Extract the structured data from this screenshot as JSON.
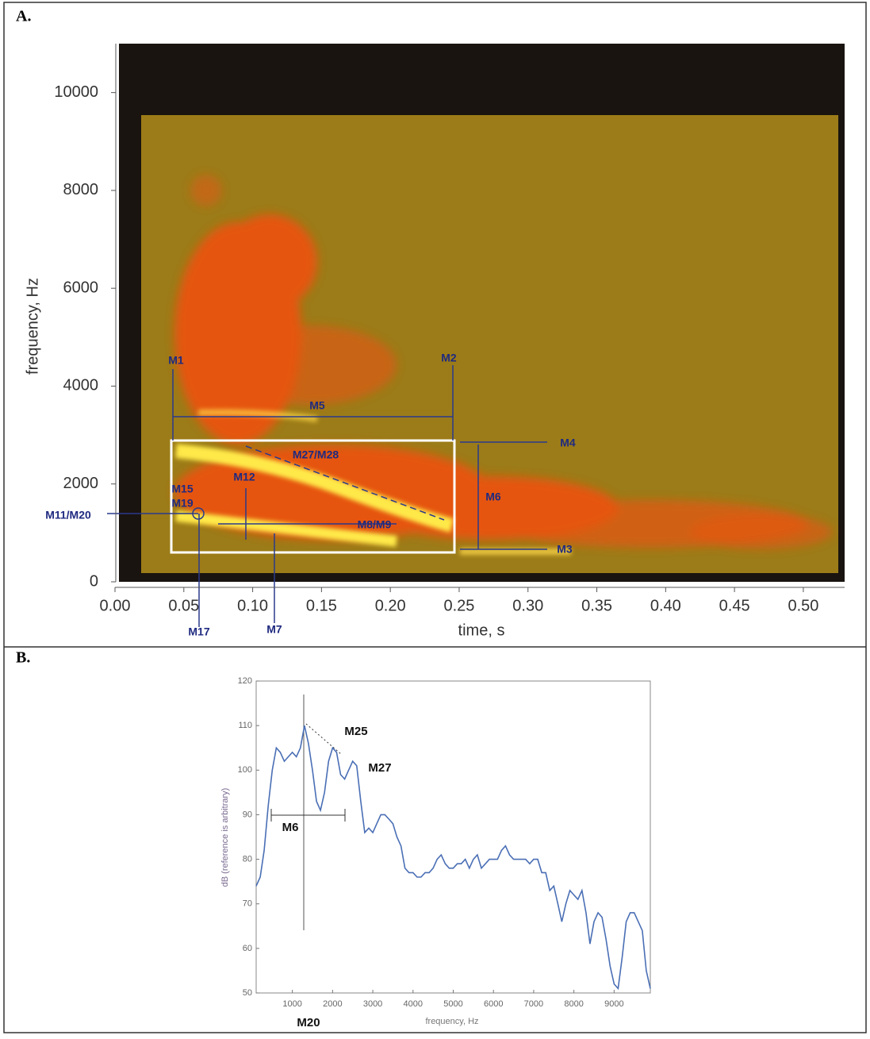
{
  "chart_data": [
    {
      "type": "spectrogram",
      "panel": "A.",
      "xlabel": "time, s",
      "ylabel": "frequency, Hz",
      "xlim": [
        0,
        0.53
      ],
      "ylim": [
        0,
        11000
      ],
      "xticks": [
        {
          "value": 0,
          "label": "0.00"
        },
        {
          "value": 0.05,
          "label": "0.05"
        },
        {
          "value": 0.1,
          "label": "0.10"
        },
        {
          "value": 0.15,
          "label": "0.15"
        },
        {
          "value": 0.2,
          "label": "0.20"
        },
        {
          "value": 0.25,
          "label": "0.25"
        },
        {
          "value": 0.3,
          "label": "0.30"
        },
        {
          "value": 0.35,
          "label": "0.35"
        },
        {
          "value": 0.4,
          "label": "0.40"
        },
        {
          "value": 0.45,
          "label": "0.45"
        },
        {
          "value": 0.5,
          "label": "0.50"
        }
      ],
      "yticks": [
        0,
        2000,
        4000,
        6000,
        8000,
        10000
      ],
      "annotations": [
        "M1",
        "M2",
        "M5",
        "M4",
        "M27/M28",
        "M12",
        "M15",
        "M19",
        "M11/M20",
        "M6",
        "M8/M9",
        "M3",
        "M17",
        "M7"
      ]
    },
    {
      "type": "line",
      "panel": "B.",
      "xlabel": "frequency, Hz",
      "ylabel": "dB (reference is arbitrary)",
      "xlim": [
        100,
        9900
      ],
      "ylim": [
        50,
        120
      ],
      "xticks": [
        1000,
        2000,
        3000,
        4000,
        5000,
        6000,
        7000,
        8000,
        9000
      ],
      "yticks": [
        50,
        60,
        70,
        80,
        90,
        100,
        110,
        120
      ],
      "color": "#4a6fb5",
      "x": [
        100,
        200,
        300,
        400,
        500,
        600,
        700,
        800,
        900,
        1000,
        1100,
        1200,
        1300,
        1400,
        1500,
        1600,
        1700,
        1800,
        1900,
        2000,
        2100,
        2200,
        2300,
        2400,
        2500,
        2600,
        2700,
        2800,
        2900,
        3000,
        3100,
        3200,
        3300,
        3400,
        3500,
        3600,
        3700,
        3800,
        3900,
        4000,
        4100,
        4200,
        4300,
        4400,
        4500,
        4600,
        4700,
        4800,
        4900,
        5000,
        5100,
        5200,
        5300,
        5400,
        5500,
        5600,
        5700,
        5800,
        5900,
        6000,
        6100,
        6200,
        6300,
        6400,
        6500,
        6600,
        6700,
        6800,
        6900,
        7000,
        7100,
        7200,
        7300,
        7400,
        7500,
        7600,
        7700,
        7800,
        7900,
        8000,
        8100,
        8200,
        8300,
        8400,
        8500,
        8600,
        8700,
        8800,
        8900,
        9000,
        9100,
        9200,
        9300,
        9400,
        9500,
        9600,
        9700,
        9800,
        9900
      ],
      "values": [
        74,
        76,
        82,
        92,
        100,
        105,
        104,
        102,
        103,
        104,
        103,
        105,
        110,
        106,
        100,
        93,
        91,
        95,
        102,
        105,
        104,
        99,
        98,
        100,
        102,
        101,
        93,
        86,
        87,
        86,
        88,
        90,
        90,
        89,
        88,
        85,
        83,
        78,
        77,
        77,
        76,
        76,
        77,
        77,
        78,
        80,
        81,
        79,
        78,
        78,
        79,
        79,
        80,
        78,
        80,
        81,
        78,
        79,
        80,
        80,
        80,
        82,
        83,
        81,
        80,
        80,
        80,
        80,
        79,
        80,
        80,
        77,
        77,
        73,
        74,
        70,
        66,
        70,
        73,
        72,
        71,
        73,
        68,
        61,
        66,
        68,
        67,
        62,
        56,
        52,
        51,
        58,
        66,
        68,
        68,
        66,
        64,
        55,
        51
      ],
      "annotations": [
        "M25",
        "M27",
        "M6",
        "M20"
      ]
    }
  ]
}
